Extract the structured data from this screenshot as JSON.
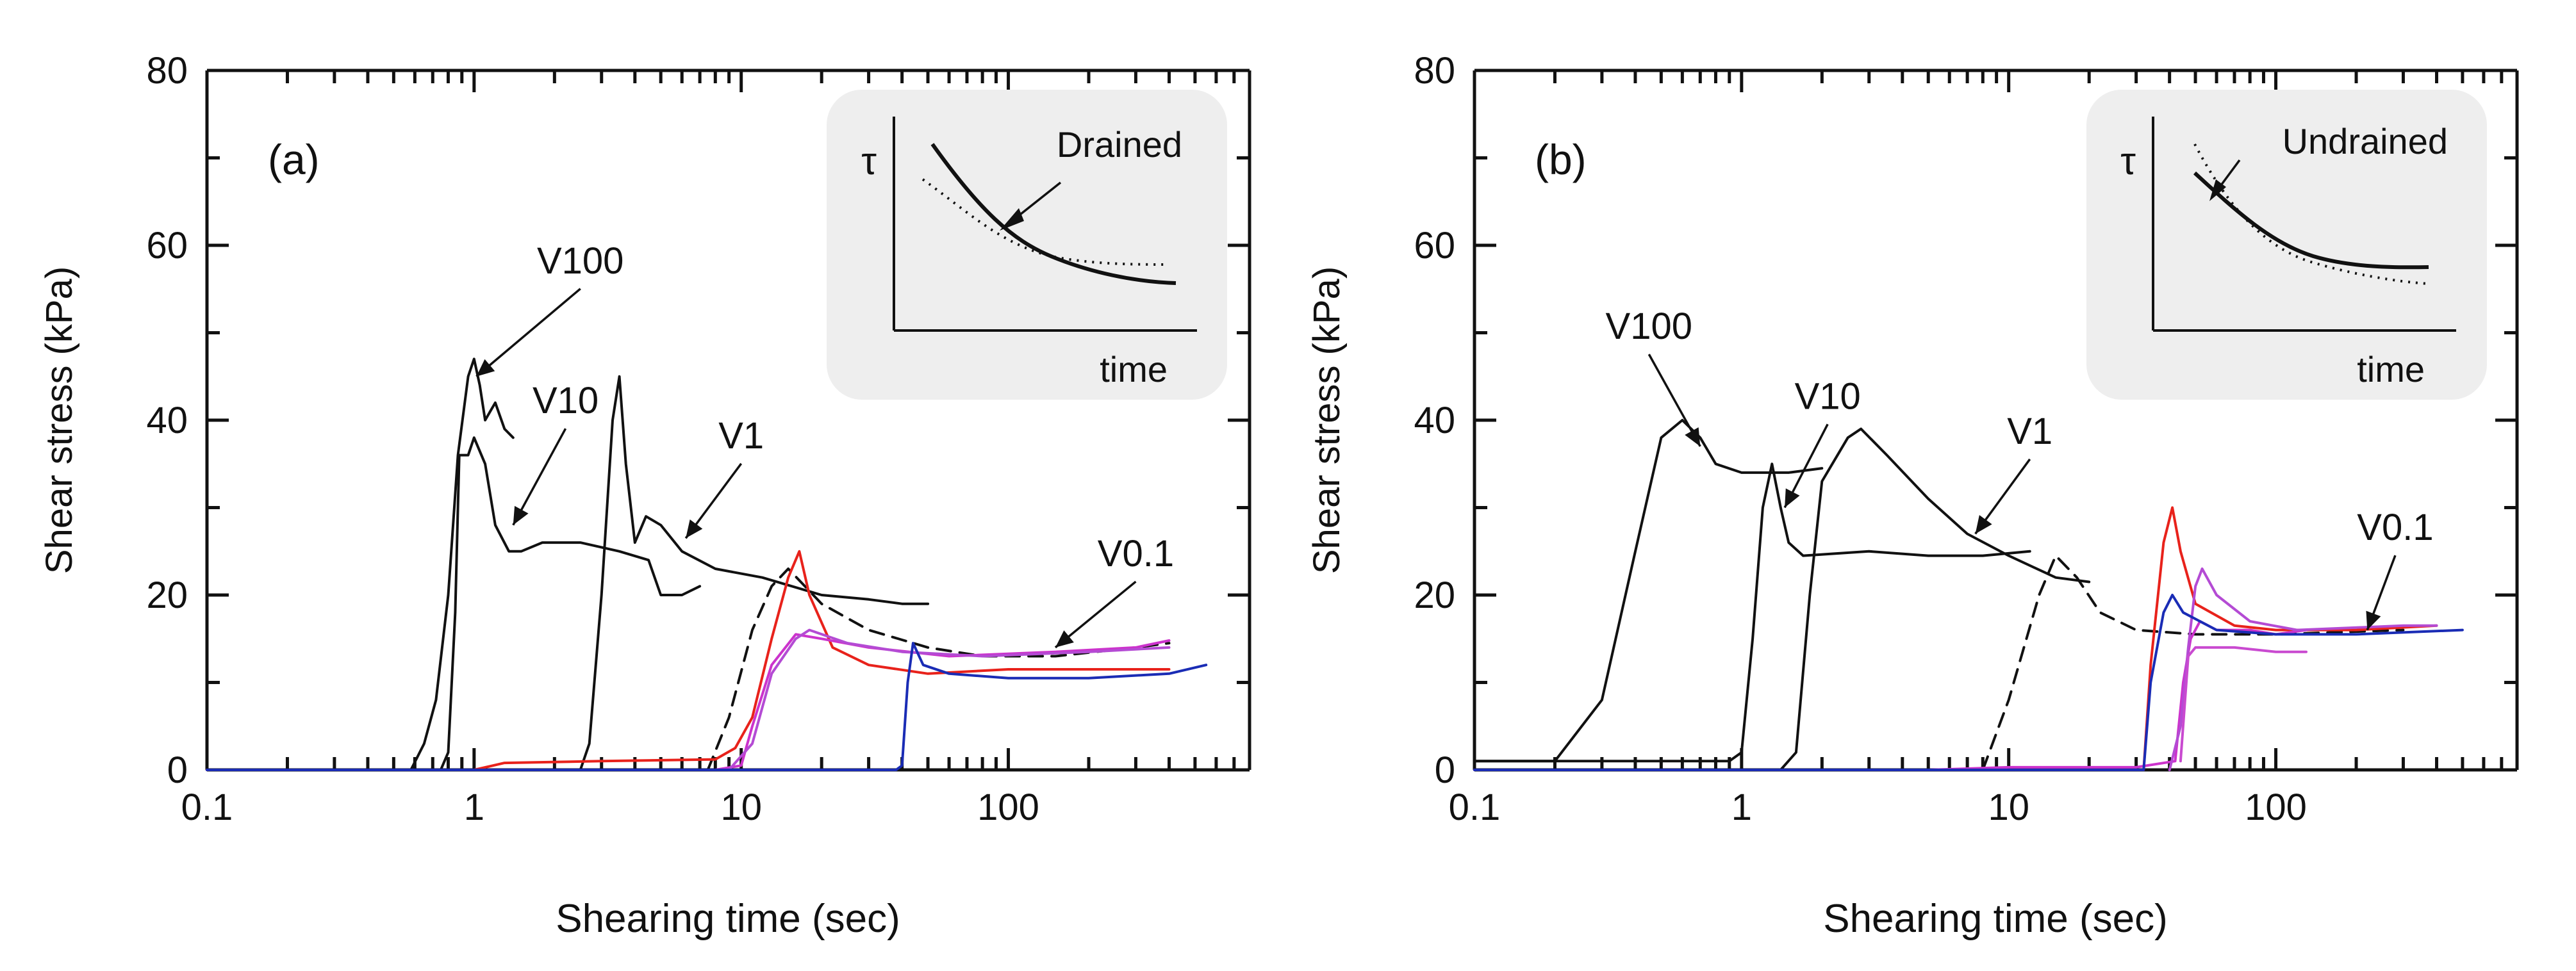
{
  "chart_data": [
    {
      "type": "line",
      "panel_label": "(a)",
      "xlabel": "Shearing time (sec)",
      "ylabel": "Shear stress (kPa)",
      "x_scale": "log",
      "xlim": [
        0.1,
        800
      ],
      "ylim": [
        0,
        80
      ],
      "x_ticks": [
        0.1,
        1,
        10,
        100
      ],
      "x_tick_labels": [
        "0.1",
        "1",
        "10",
        "100"
      ],
      "y_ticks": [
        0,
        20,
        40,
        60,
        80
      ],
      "y_tick_labels": [
        "0",
        "20",
        "40",
        "60",
        "80"
      ],
      "inset": {
        "x_label": "time",
        "y_label": "τ",
        "annotation": "Drained"
      },
      "series": [
        {
          "name": "V100",
          "color": "#111111",
          "dash": "solid",
          "points": [
            [
              0.1,
              0
            ],
            [
              0.58,
              0
            ],
            [
              0.65,
              3
            ],
            [
              0.72,
              8
            ],
            [
              0.8,
              20
            ],
            [
              0.87,
              36
            ],
            [
              0.95,
              45
            ],
            [
              1.0,
              47
            ],
            [
              1.05,
              44
            ],
            [
              1.1,
              40
            ],
            [
              1.2,
              42
            ],
            [
              1.3,
              39
            ],
            [
              1.4,
              38
            ]
          ]
        },
        {
          "name": "V10",
          "color": "#111111",
          "dash": "solid",
          "points": [
            [
              0.1,
              0
            ],
            [
              0.75,
              0
            ],
            [
              0.8,
              2
            ],
            [
              0.85,
              18
            ],
            [
              0.88,
              36
            ],
            [
              0.95,
              36
            ],
            [
              1.0,
              38
            ],
            [
              1.1,
              35
            ],
            [
              1.2,
              28
            ],
            [
              1.35,
              25
            ],
            [
              1.5,
              25
            ],
            [
              1.8,
              26
            ],
            [
              2.5,
              26
            ],
            [
              3.5,
              25
            ],
            [
              4.5,
              24
            ],
            [
              5.0,
              20
            ],
            [
              6.0,
              20
            ],
            [
              7.0,
              21
            ]
          ]
        },
        {
          "name": "V1",
          "color": "#111111",
          "dash": "solid",
          "points": [
            [
              0.1,
              0
            ],
            [
              2.5,
              0
            ],
            [
              2.7,
              3
            ],
            [
              3.0,
              20
            ],
            [
              3.3,
              40
            ],
            [
              3.5,
              45
            ],
            [
              3.7,
              35
            ],
            [
              4.0,
              26
            ],
            [
              4.4,
              29
            ],
            [
              5.0,
              28
            ],
            [
              6.0,
              25
            ],
            [
              8.0,
              23
            ],
            [
              12,
              22
            ],
            [
              20,
              20
            ],
            [
              30,
              19.5
            ],
            [
              40,
              19
            ],
            [
              50,
              19
            ]
          ]
        },
        {
          "name": "V0.1",
          "color": "#111111",
          "dash": "dashed",
          "points": [
            [
              7.5,
              0
            ],
            [
              9,
              6
            ],
            [
              11,
              16
            ],
            [
              13,
              21
            ],
            [
              15,
              23
            ],
            [
              20,
              19
            ],
            [
              30,
              16
            ],
            [
              50,
              14
            ],
            [
              80,
              13
            ],
            [
              150,
              13
            ],
            [
              300,
              14
            ],
            [
              400,
              14.5
            ]
          ]
        },
        {
          "name": "red",
          "color": "#e8221b",
          "dash": "solid",
          "points": [
            [
              0.1,
              0
            ],
            [
              1.0,
              0
            ],
            [
              1.3,
              0.8
            ],
            [
              3,
              1
            ],
            [
              8,
              1.2
            ],
            [
              9.5,
              2.5
            ],
            [
              11,
              6
            ],
            [
              13,
              15
            ],
            [
              15,
              22
            ],
            [
              16.5,
              25
            ],
            [
              18,
              20
            ],
            [
              22,
              14
            ],
            [
              30,
              12
            ],
            [
              50,
              11
            ],
            [
              100,
              11.5
            ],
            [
              200,
              11.5
            ],
            [
              400,
              11.5
            ]
          ]
        },
        {
          "name": "magenta",
          "color": "#cc33cc",
          "dash": "solid",
          "points": [
            [
              0.1,
              0
            ],
            [
              8,
              0
            ],
            [
              10,
              0.5
            ],
            [
              11,
              5
            ],
            [
              13,
              12
            ],
            [
              16,
              15.5
            ],
            [
              20,
              15
            ],
            [
              30,
              14
            ],
            [
              60,
              13
            ],
            [
              150,
              13.5
            ],
            [
              300,
              14
            ],
            [
              400,
              14.8
            ]
          ]
        },
        {
          "name": "magenta-2",
          "color": "#b44bd4",
          "dash": "solid",
          "points": [
            [
              9,
              0
            ],
            [
              11,
              3
            ],
            [
              13,
              11
            ],
            [
              16,
              15
            ],
            [
              18,
              16
            ],
            [
              25,
              14.5
            ],
            [
              40,
              13.5
            ],
            [
              80,
              13
            ],
            [
              200,
              13.5
            ],
            [
              400,
              14
            ]
          ]
        },
        {
          "name": "blue",
          "color": "#1a2cb5",
          "dash": "solid",
          "points": [
            [
              0.1,
              0
            ],
            [
              38,
              0
            ],
            [
              40,
              0.5
            ],
            [
              42,
              10
            ],
            [
              44,
              14.5
            ],
            [
              48,
              12
            ],
            [
              60,
              11
            ],
            [
              100,
              10.5
            ],
            [
              200,
              10.5
            ],
            [
              400,
              11
            ],
            [
              550,
              12
            ]
          ]
        }
      ],
      "labels": [
        {
          "text": "V100",
          "x": 2.5,
          "y": 56.5,
          "arrow_to": [
            1.02,
            45
          ]
        },
        {
          "text": "V10",
          "x": 2.2,
          "y": 40.5,
          "arrow_to": [
            1.4,
            28
          ]
        },
        {
          "text": "V1",
          "x": 10.0,
          "y": 36.5,
          "arrow_to": [
            6.2,
            26.5
          ]
        },
        {
          "text": "V0.1",
          "x": 300,
          "y": 23,
          "arrow_to": [
            150,
            14
          ]
        }
      ]
    },
    {
      "type": "line",
      "panel_label": "(b)",
      "xlabel": "Shearing time (sec)",
      "ylabel": "Shear stress (kPa)",
      "x_scale": "log",
      "xlim": [
        0.1,
        800
      ],
      "ylim": [
        0,
        80
      ],
      "x_ticks": [
        0.1,
        1,
        10,
        100
      ],
      "x_tick_labels": [
        "0.1",
        "1",
        "10",
        "100"
      ],
      "y_ticks": [
        0,
        20,
        40,
        60,
        80
      ],
      "y_tick_labels": [
        "0",
        "20",
        "40",
        "60",
        "80"
      ],
      "inset": {
        "x_label": "time",
        "y_label": "τ",
        "annotation": "Undrained"
      },
      "series": [
        {
          "name": "V100",
          "color": "#111111",
          "dash": "solid",
          "points": [
            [
              0.1,
              1
            ],
            [
              0.2,
              1
            ],
            [
              0.3,
              8
            ],
            [
              0.4,
              25
            ],
            [
              0.5,
              38
            ],
            [
              0.6,
              40
            ],
            [
              0.7,
              38
            ],
            [
              0.8,
              35
            ],
            [
              1.0,
              34
            ],
            [
              1.5,
              34
            ],
            [
              2.0,
              34.5
            ]
          ]
        },
        {
          "name": "V10",
          "color": "#111111",
          "dash": "solid",
          "points": [
            [
              0.1,
              1
            ],
            [
              0.9,
              1
            ],
            [
              1.0,
              2
            ],
            [
              1.1,
              15
            ],
            [
              1.2,
              30
            ],
            [
              1.3,
              35
            ],
            [
              1.4,
              30
            ],
            [
              1.5,
              26
            ],
            [
              1.7,
              24.5
            ],
            [
              3,
              25
            ],
            [
              5,
              24.5
            ],
            [
              8,
              24.5
            ],
            [
              12,
              25
            ]
          ]
        },
        {
          "name": "V1",
          "color": "#111111",
          "dash": "solid",
          "points": [
            [
              1.4,
              0
            ],
            [
              1.6,
              2
            ],
            [
              1.8,
              20
            ],
            [
              2.0,
              33
            ],
            [
              2.5,
              38
            ],
            [
              2.8,
              39
            ],
            [
              3.5,
              36
            ],
            [
              5,
              31
            ],
            [
              7,
              27
            ],
            [
              10,
              24.5
            ],
            [
              15,
              22
            ],
            [
              20,
              21.5
            ]
          ]
        },
        {
          "name": "V0.1",
          "color": "#111111",
          "dash": "dashed",
          "points": [
            [
              8,
              0
            ],
            [
              10,
              8
            ],
            [
              13,
              20
            ],
            [
              15,
              24.5
            ],
            [
              18,
              22
            ],
            [
              22,
              18
            ],
            [
              30,
              16
            ],
            [
              50,
              15.5
            ],
            [
              100,
              15.5
            ],
            [
              300,
              16
            ]
          ]
        },
        {
          "name": "red",
          "color": "#e8221b",
          "dash": "solid",
          "points": [
            [
              0.1,
              0
            ],
            [
              32,
              0
            ],
            [
              34,
              12
            ],
            [
              38,
              26
            ],
            [
              41,
              30
            ],
            [
              44,
              25
            ],
            [
              50,
              19
            ],
            [
              70,
              16.5
            ],
            [
              100,
              16
            ],
            [
              200,
              16
            ],
            [
              400,
              16.5
            ]
          ]
        },
        {
          "name": "magenta",
          "color": "#cc33cc",
          "dash": "solid",
          "points": [
            [
              0.1,
              0
            ],
            [
              5,
              0
            ],
            [
              10,
              0.3
            ],
            [
              30,
              0.3
            ],
            [
              42,
              1
            ],
            [
              45,
              10
            ],
            [
              48,
              15
            ],
            [
              52,
              17
            ],
            [
              60,
              16
            ],
            [
              80,
              16
            ],
            [
              100,
              15.5
            ],
            [
              130,
              16
            ]
          ]
        },
        {
          "name": "magenta-2",
          "color": "#b44bd4",
          "dash": "solid",
          "points": [
            [
              40,
              0
            ],
            [
              44,
              5
            ],
            [
              47,
              14
            ],
            [
              50,
              21
            ],
            [
              53,
              23
            ],
            [
              60,
              20
            ],
            [
              80,
              17
            ],
            [
              120,
              16
            ],
            [
              300,
              16.5
            ],
            [
              400,
              16.5
            ]
          ]
        },
        {
          "name": "magenta-3",
          "color": "#c94ad0",
          "dash": "solid",
          "points": [
            [
              44,
              1
            ],
            [
              47,
              13
            ],
            [
              50,
              14
            ],
            [
              70,
              14
            ],
            [
              100,
              13.5
            ],
            [
              130,
              13.5
            ]
          ]
        },
        {
          "name": "blue",
          "color": "#1a2cb5",
          "dash": "solid",
          "points": [
            [
              0.1,
              0
            ],
            [
              32,
              0
            ],
            [
              34,
              10
            ],
            [
              38,
              18
            ],
            [
              41,
              20
            ],
            [
              45,
              18
            ],
            [
              60,
              16
            ],
            [
              100,
              15.5
            ],
            [
              200,
              15.5
            ],
            [
              500,
              16
            ]
          ]
        }
      ],
      "labels": [
        {
          "text": "V100",
          "x": 0.45,
          "y": 49,
          "arrow_to": [
            0.7,
            37
          ]
        },
        {
          "text": "V10",
          "x": 2.1,
          "y": 41,
          "arrow_to": [
            1.45,
            30
          ]
        },
        {
          "text": "V1",
          "x": 12.0,
          "y": 37,
          "arrow_to": [
            7.5,
            27
          ]
        },
        {
          "text": "V0.1",
          "x": 280,
          "y": 26,
          "arrow_to": [
            220,
            16
          ]
        }
      ]
    }
  ]
}
